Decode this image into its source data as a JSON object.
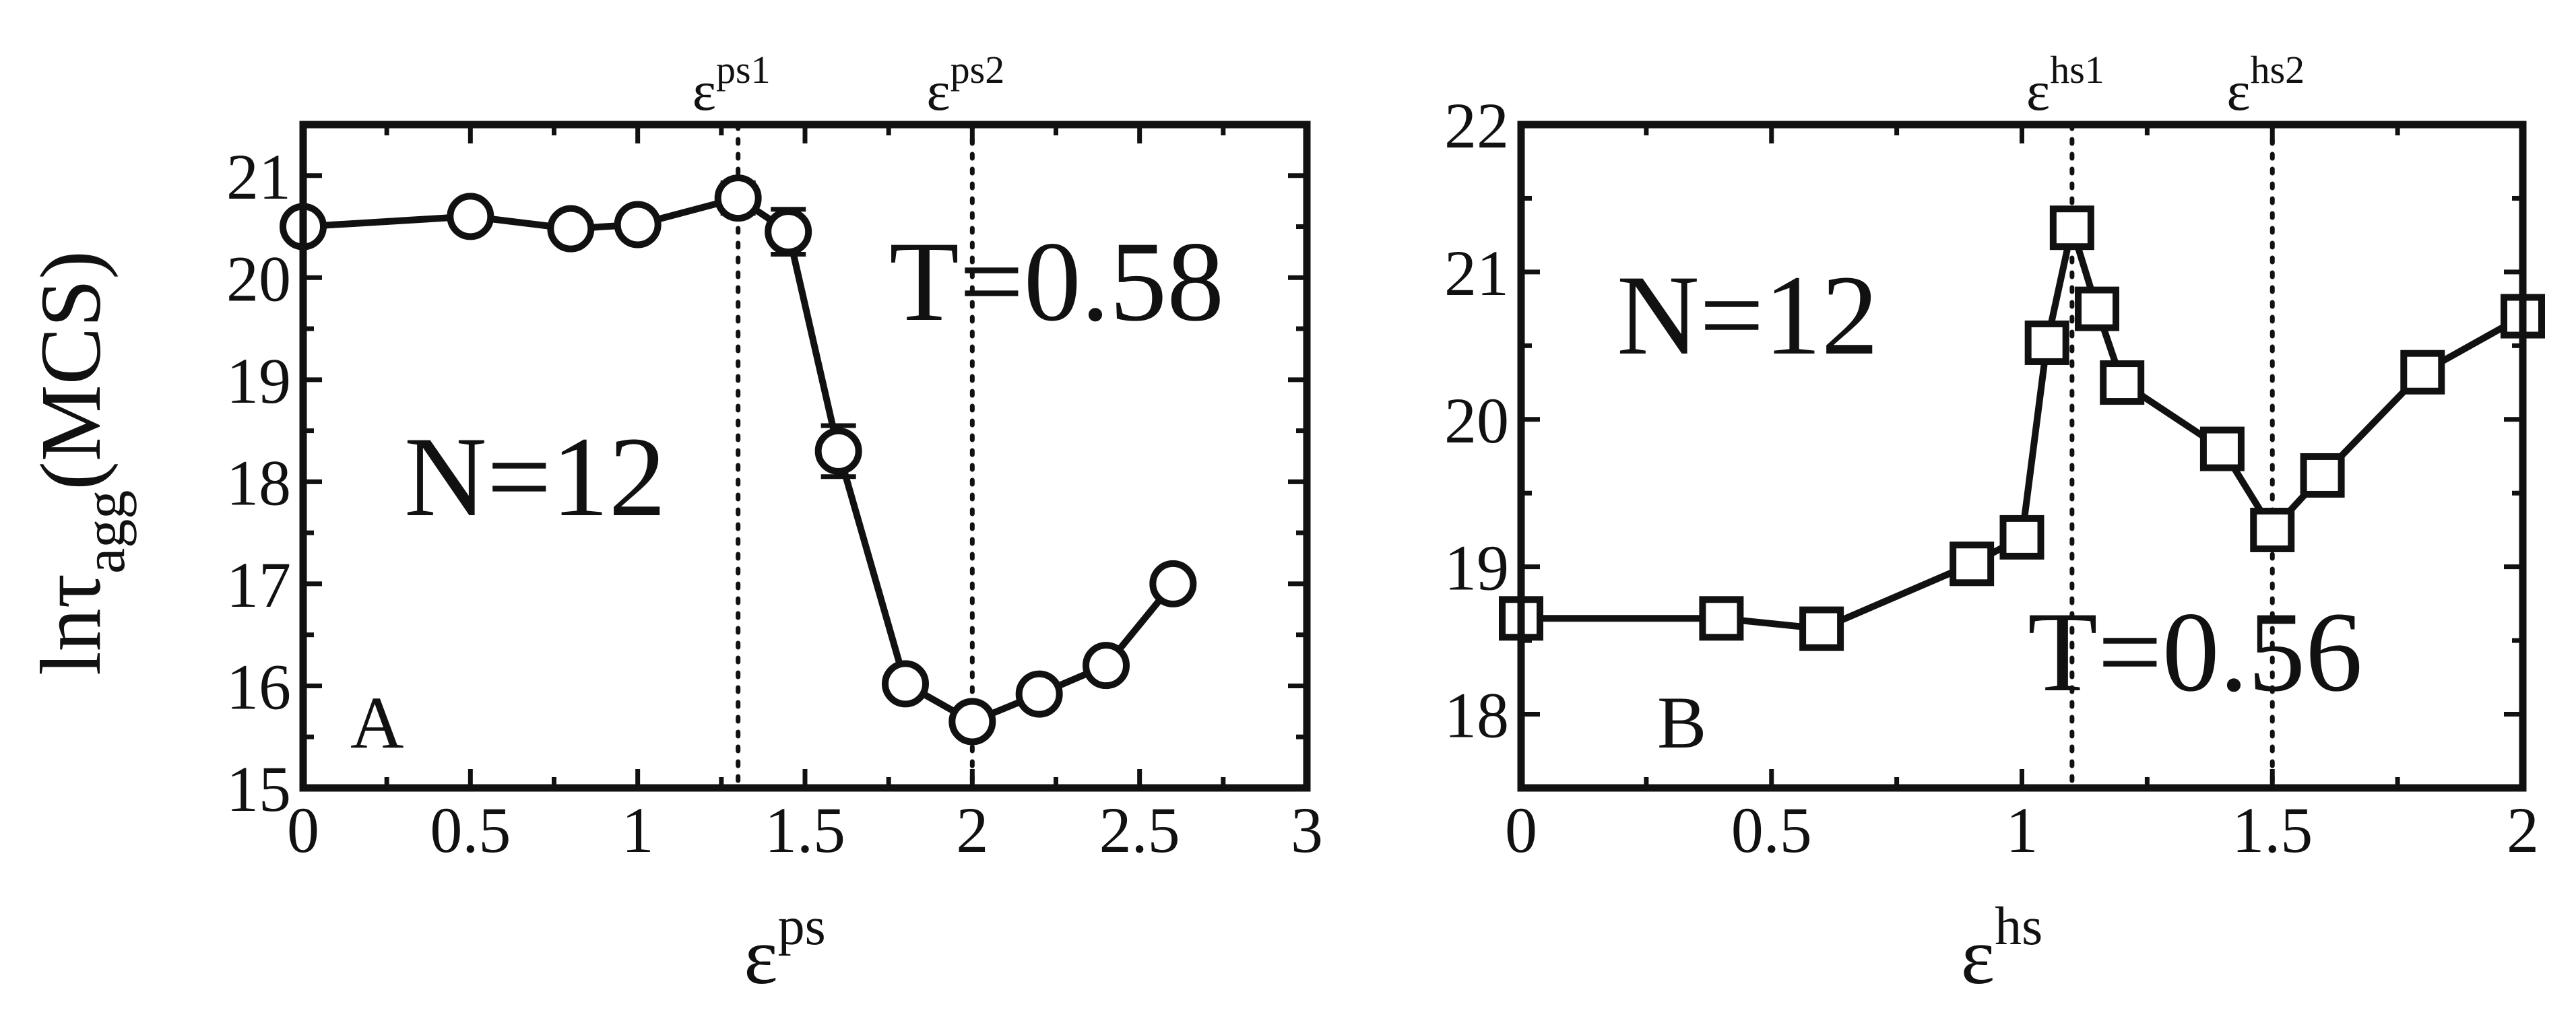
{
  "chart_data": [
    {
      "type": "line",
      "panel_label": "A",
      "annotation_n": "N=12",
      "annotation_t": "T=0.58",
      "xlabel": "ε",
      "xlabel_sup": "ps",
      "ylabel": "lnτ",
      "ylabel_sub": "agg",
      "ylabel_unit": "(MCS)",
      "xlim": [
        0,
        3
      ],
      "ylim": [
        15,
        21.5
      ],
      "xticks": [
        0,
        0.5,
        1,
        1.5,
        2,
        2.5,
        3
      ],
      "xtick_labels": [
        "0",
        "0.5",
        "1",
        "1.5",
        "2",
        "2.5",
        "3"
      ],
      "yticks": [
        15,
        16,
        17,
        18,
        19,
        20,
        21
      ],
      "ytick_labels": [
        "15",
        "16",
        "17",
        "18",
        "19",
        "20",
        "21"
      ],
      "marker": "circle",
      "series": [
        {
          "x": [
            0,
            0.5,
            0.8,
            1.0,
            1.3,
            1.45,
            1.6,
            1.8,
            2.0,
            2.2,
            2.4,
            2.6
          ],
          "y": [
            20.5,
            20.6,
            20.48,
            20.52,
            20.78,
            20.45,
            18.3,
            16.02,
            15.65,
            15.92,
            16.2,
            17.0
          ],
          "err": [
            0.08,
            0.1,
            0.12,
            0.1,
            0.15,
            0.22,
            0.25,
            0.08,
            0.12,
            0.08,
            0.1,
            0.08
          ]
        }
      ],
      "vlines": [
        {
          "x": 1.3,
          "label": "ε",
          "label_sup": "ps1"
        },
        {
          "x": 2.0,
          "label": "ε",
          "label_sup": "ps2"
        }
      ]
    },
    {
      "type": "line",
      "panel_label": "B",
      "annotation_n": "N=12",
      "annotation_t": "T=0.56",
      "xlabel": "ε",
      "xlabel_sup": "hs",
      "xlim": [
        0,
        2
      ],
      "ylim": [
        17.5,
        22
      ],
      "xticks": [
        0,
        0.5,
        1,
        1.5,
        2
      ],
      "xtick_labels": [
        "0",
        "0.5",
        "1",
        "1.5",
        "2"
      ],
      "yticks": [
        18,
        19,
        20,
        21,
        22
      ],
      "ytick_labels": [
        "18",
        "19",
        "20",
        "21",
        "22"
      ],
      "marker": "square",
      "series": [
        {
          "x": [
            0,
            0.4,
            0.6,
            0.9,
            1.0,
            1.05,
            1.1,
            1.15,
            1.2,
            1.4,
            1.5,
            1.6,
            1.8,
            2.0
          ],
          "y": [
            18.65,
            18.65,
            18.58,
            19.02,
            19.2,
            20.52,
            21.3,
            20.75,
            20.25,
            19.8,
            19.25,
            19.62,
            20.32,
            20.7
          ]
        }
      ],
      "vlines": [
        {
          "x": 1.1,
          "label": "ε",
          "label_sup": "hs1"
        },
        {
          "x": 1.5,
          "label": "ε",
          "label_sup": "hs2"
        }
      ]
    }
  ]
}
